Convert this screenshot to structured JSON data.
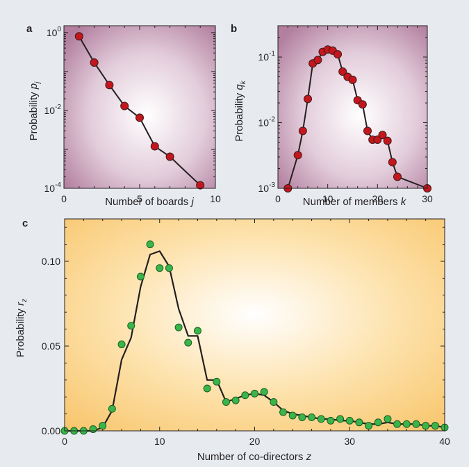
{
  "chart_data": [
    {
      "panel": "a",
      "type": "line",
      "xlabel": "Number of boards",
      "xlabel_var": "j",
      "ylabel": "Probability",
      "ylabel_var": "p",
      "ylabel_sub": "j",
      "yscale": "log",
      "xlim": [
        0,
        10
      ],
      "ylim": [
        0.0001,
        1.5
      ],
      "xticks": [
        "0",
        "5",
        "10"
      ],
      "yticks": [
        {
          "base": "10",
          "exp": "0"
        },
        {
          "base": "10",
          "exp": "-2"
        },
        {
          "base": "10",
          "exp": "-4"
        }
      ],
      "points": {
        "x": [
          1,
          2,
          3,
          4,
          5,
          6,
          7,
          9
        ],
        "y": [
          0.8,
          0.17,
          0.045,
          0.013,
          0.0065,
          0.0012,
          0.00065,
          0.00012
        ]
      },
      "marker_color": "#c4161c",
      "background": "radial #ffffff → #b986a8"
    },
    {
      "panel": "b",
      "type": "line",
      "xlabel": "Number of members",
      "xlabel_var": "k",
      "ylabel": "Probability",
      "ylabel_var": "q",
      "ylabel_sub": "k",
      "yscale": "log",
      "xlim": [
        0,
        30
      ],
      "ylim": [
        0.001,
        0.3
      ],
      "xticks": [
        "0",
        "10",
        "20",
        "30"
      ],
      "yticks": [
        {
          "base": "10",
          "exp": "-1"
        },
        {
          "base": "10",
          "exp": "-2"
        },
        {
          "base": "10",
          "exp": "-3"
        }
      ],
      "points": {
        "x": [
          2,
          4,
          5,
          6,
          7,
          8,
          9,
          10,
          11,
          12,
          13,
          14,
          15,
          16,
          17,
          18,
          19,
          20,
          21,
          22,
          23,
          24,
          30
        ],
        "y": [
          0.001,
          0.0032,
          0.0075,
          0.023,
          0.08,
          0.09,
          0.12,
          0.13,
          0.125,
          0.11,
          0.06,
          0.05,
          0.045,
          0.022,
          0.019,
          0.0075,
          0.0055,
          0.0055,
          0.0065,
          0.0053,
          0.0025,
          0.0015,
          0.001
        ]
      },
      "marker_color": "#c4161c",
      "background": "radial #ffffff → #b986a8"
    },
    {
      "panel": "c",
      "type": "line+scatter",
      "xlabel": "Number of co-directors",
      "xlabel_var": "z",
      "ylabel": "Probability",
      "ylabel_var": "r",
      "ylabel_sub": "z",
      "yscale": "linear",
      "xlim": [
        0,
        40
      ],
      "ylim": [
        0,
        0.125
      ],
      "xticks": [
        "0",
        "10",
        "20",
        "30",
        "40"
      ],
      "yticks": [
        "0.00",
        "0.05",
        "0.10"
      ],
      "ytick_values": [
        0,
        0.05,
        0.1
      ],
      "xtick_values": [
        0,
        10,
        20,
        30,
        40
      ],
      "points": {
        "x": [
          0,
          1,
          2,
          3,
          4,
          5,
          6,
          7,
          8,
          9,
          10,
          11,
          12,
          13,
          14,
          15,
          16,
          17,
          18,
          19,
          20,
          21,
          22,
          23,
          24,
          25,
          26,
          27,
          28,
          29,
          30,
          31,
          32,
          33,
          34,
          35,
          36,
          37,
          38,
          39,
          40
        ],
        "y": [
          0.0,
          0.0,
          0.0,
          0.001,
          0.003,
          0.013,
          0.051,
          0.062,
          0.091,
          0.11,
          0.096,
          0.096,
          0.061,
          0.052,
          0.059,
          0.025,
          0.029,
          0.017,
          0.018,
          0.021,
          0.022,
          0.023,
          0.017,
          0.011,
          0.009,
          0.008,
          0.008,
          0.007,
          0.006,
          0.007,
          0.006,
          0.005,
          0.003,
          0.005,
          0.007,
          0.004,
          0.004,
          0.004,
          0.003,
          0.003,
          0.002
        ]
      },
      "line": {
        "x": [
          0,
          1,
          2,
          3,
          4,
          5,
          6,
          7,
          8,
          9,
          10,
          11,
          12,
          13,
          14,
          15,
          16,
          17,
          18,
          19,
          20,
          21,
          22,
          23,
          24,
          25,
          26,
          27,
          28,
          29,
          30,
          31,
          32,
          33,
          34,
          35,
          36,
          37,
          38,
          39,
          40
        ],
        "y": [
          0.0,
          0.0,
          0.0,
          0.0,
          0.002,
          0.012,
          0.042,
          0.055,
          0.085,
          0.104,
          0.106,
          0.097,
          0.072,
          0.056,
          0.056,
          0.03,
          0.03,
          0.017,
          0.019,
          0.021,
          0.022,
          0.021,
          0.017,
          0.012,
          0.01,
          0.009,
          0.008,
          0.007,
          0.007,
          0.006,
          0.006,
          0.005,
          0.004,
          0.004,
          0.005,
          0.004,
          0.004,
          0.004,
          0.003,
          0.003,
          0.002
        ]
      },
      "marker_color": "#39b54a",
      "background": "radial #ffffff → #f9c97a"
    }
  ]
}
